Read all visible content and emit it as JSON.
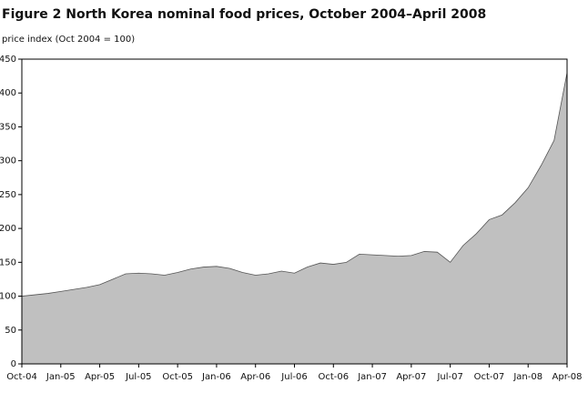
{
  "chart_data": {
    "type": "area",
    "title": "Figure 2    North Korea nominal food prices, October 2004–April 2008",
    "subtitle": "price index (Oct 2004 =  100)",
    "categories": [
      "Oct-04",
      null,
      null,
      "Jan-05",
      null,
      null,
      "Apr-05",
      null,
      null,
      "Jul-05",
      null,
      null,
      "Oct-05",
      null,
      null,
      "Jan-06",
      null,
      null,
      "Apr-06",
      null,
      null,
      "Jul-06",
      null,
      null,
      "Oct-06",
      null,
      null,
      "Jan-07",
      null,
      null,
      "Apr-07",
      null,
      null,
      "Jul-07",
      null,
      null,
      "Oct-07",
      null,
      null,
      "Jan-08",
      null,
      null,
      "Apr-08"
    ],
    "values": [
      100,
      102,
      104,
      107,
      110,
      113,
      117,
      125,
      133,
      134,
      133,
      131,
      135,
      140,
      143,
      144,
      141,
      135,
      131,
      133,
      137,
      134,
      143,
      149,
      147,
      150,
      162,
      161,
      160,
      159,
      160,
      166,
      165,
      150,
      175,
      192,
      213,
      220,
      238,
      260,
      293,
      330,
      430
    ],
    "color": "#c0c0c0",
    "ylim": [
      0,
      450
    ],
    "yticks": [
      0,
      50,
      100,
      150,
      200,
      250,
      300,
      350,
      400,
      450
    ],
    "grid": false
  }
}
